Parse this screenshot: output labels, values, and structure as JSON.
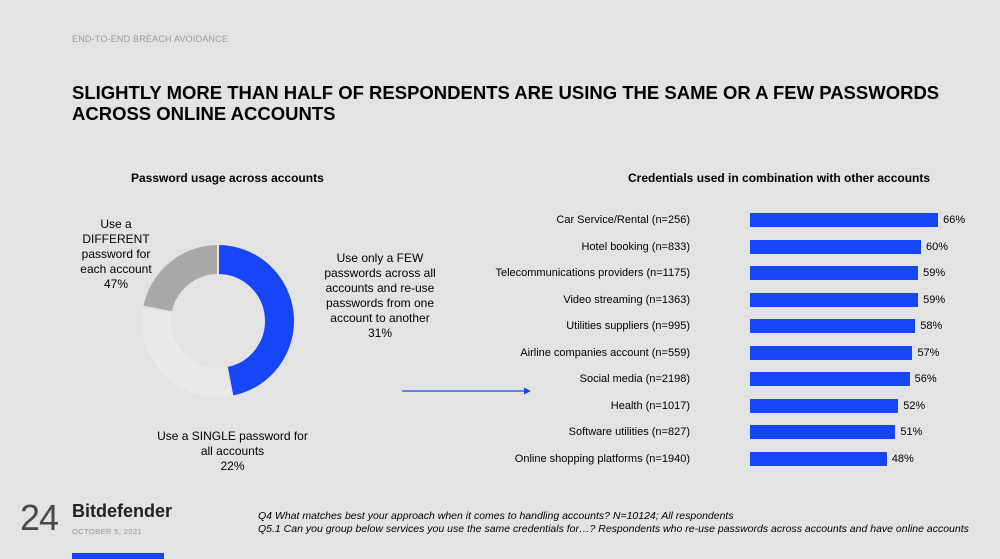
{
  "header": {
    "kicker": "END-TO-END BREACH AVOIDANCE",
    "headline": "SLIGHTLY MORE THAN HALF OF RESPONDENTS ARE USING THE SAME OR A FEW PASSWORDS ACROSS ONLINE ACCOUNTS"
  },
  "chart_data": [
    {
      "type": "pie",
      "title": "Password usage across accounts",
      "slices": [
        {
          "label": "Use a DIFFERENT password for each account",
          "value": 47,
          "display": "47%",
          "color": "#1746f6"
        },
        {
          "label": "Use only a FEW passwords across all accounts and re-use passwords from one account to another",
          "value": 31,
          "display": "31%",
          "color": "#e9e9e9"
        },
        {
          "label": "Use a SINGLE password for all accounts",
          "value": 22,
          "display": "22%",
          "color": "#a9a9a9"
        }
      ]
    },
    {
      "type": "bar",
      "orientation": "horizontal",
      "title": "Credentials used in combination with other accounts",
      "categories": [
        "Car Service/Rental (n=256)",
        "Hotel booking (n=833)",
        "Telecommunications providers (n=1175)",
        "Video streaming (n=1363)",
        "Utilities suppliers (n=995)",
        "Airline companies account (n=559)",
        "Social media (n=2198)",
        "Health (n=1017)",
        "Software utilities (n=827)",
        "Online shopping platforms (n=1940)"
      ],
      "values": [
        66,
        60,
        59,
        59,
        58,
        57,
        56,
        52,
        51,
        48
      ],
      "value_labels": [
        "66%",
        "60%",
        "59%",
        "59%",
        "58%",
        "57%",
        "56%",
        "52%",
        "51%",
        "48%"
      ],
      "color": "#1746f6"
    }
  ],
  "footer": {
    "page_number": "24",
    "brand": "Bitdefender",
    "date": "OCTOBER 5, 2021",
    "notes": [
      "Q4 What matches best your approach when it comes to handling accounts? N=10124; All respondents",
      "Q5.1 Can you group below services you use the same credentials for…? Respondents who re-use passwords across accounts and have online accounts"
    ]
  },
  "colors": {
    "accent": "#1746f6",
    "background": "#e3e3e3"
  }
}
